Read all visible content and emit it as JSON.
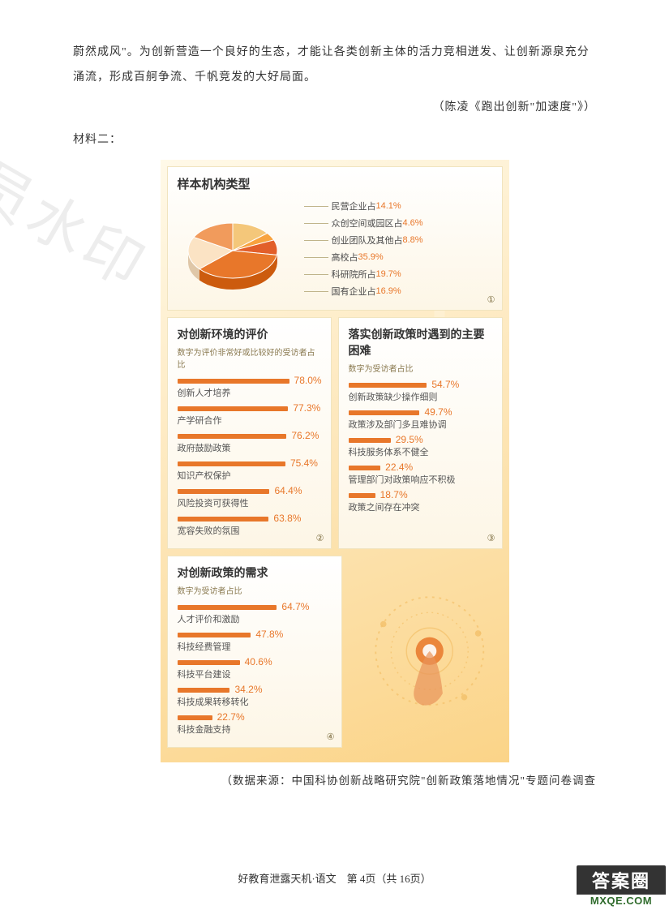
{
  "doc": {
    "para1": "蔚然成风\"。为创新营造一个良好的生态，才能让各类创新主体的活力竞相迸发、让创新源泉充分",
    "para2": "涌流，形成百舸争流、千帆竞发的大好局面。",
    "source": "（陈凌《跑出创新\"加速度\"》）",
    "material_label": "材料二：",
    "data_source": "（数据来源：中国科协创新战略研究院\"创新政策落地情况\"专题问卷调查",
    "footer": "好教育泄露天机·语文　第 4页（共 16页）"
  },
  "pie_panel": {
    "title": "样本机构类型",
    "title_fontsize": 15,
    "slices": [
      {
        "label": "民营企业占",
        "pct": 14.1,
        "color": "#f4c77a"
      },
      {
        "label": "众创空间或园区占",
        "pct": 4.6,
        "color": "#f8a33f"
      },
      {
        "label": "创业团队及其他占",
        "pct": 8.8,
        "color": "#e25f2a"
      },
      {
        "label": "高校占",
        "pct": 35.9,
        "color": "#e8772a"
      },
      {
        "label": "科研院所占",
        "pct": 19.7,
        "color": "#fbe3c4"
      },
      {
        "label": "国有企业占",
        "pct": 16.9,
        "color": "#f19b5c"
      }
    ],
    "circ": "①"
  },
  "panel2": {
    "title": "对创新环境的评价",
    "sub": "数字为评价非常好或比较好的受访者占比",
    "bars": [
      {
        "label": "创新人才培养",
        "pct": 78.0
      },
      {
        "label": "产学研合作",
        "pct": 77.3
      },
      {
        "label": "政府鼓励政策",
        "pct": 76.2
      },
      {
        "label": "知识产权保护",
        "pct": 75.4
      },
      {
        "label": "风险投资可获得性",
        "pct": 64.4
      },
      {
        "label": "宽容失败的氛围",
        "pct": 63.8
      }
    ],
    "circ": "②"
  },
  "panel3": {
    "title": "落实创新政策时遇到的主要困难",
    "sub": "数字为受访者占比",
    "bars": [
      {
        "label": "创新政策缺少操作细则",
        "pct": 54.7
      },
      {
        "label": "政策涉及部门多且难协调",
        "pct": 49.7
      },
      {
        "label": "科技服务体系不健全",
        "pct": 29.5
      },
      {
        "label": "管理部门对政策响应不积极",
        "pct": 22.4
      },
      {
        "label": "政策之间存在冲突",
        "pct": 18.7
      }
    ],
    "circ": "③"
  },
  "panel4": {
    "title": "对创新政策的需求",
    "sub": "数字为受访者占比",
    "bars": [
      {
        "label": "人才评价和激励",
        "pct": 64.7
      },
      {
        "label": "科技经费管理",
        "pct": 47.8
      },
      {
        "label": "科技平台建设",
        "pct": 40.6
      },
      {
        "label": "科技成果转移转化",
        "pct": 34.2
      },
      {
        "label": "科技金融支持",
        "pct": 22.7
      }
    ],
    "circ": "④"
  },
  "style": {
    "bar_color": "#e8772a",
    "pct_color": "#e8772a",
    "panel_bg_top": "#ffffff",
    "panel_bg_bot": "#fdf6e6",
    "info_bg_grad": [
      "#fff9e8",
      "#fde6b8",
      "#fbd488"
    ],
    "bar_scale_max": 100
  },
  "watermark": "员水印",
  "badge": {
    "cn": "答案圈",
    "url": "MXQE.COM"
  }
}
